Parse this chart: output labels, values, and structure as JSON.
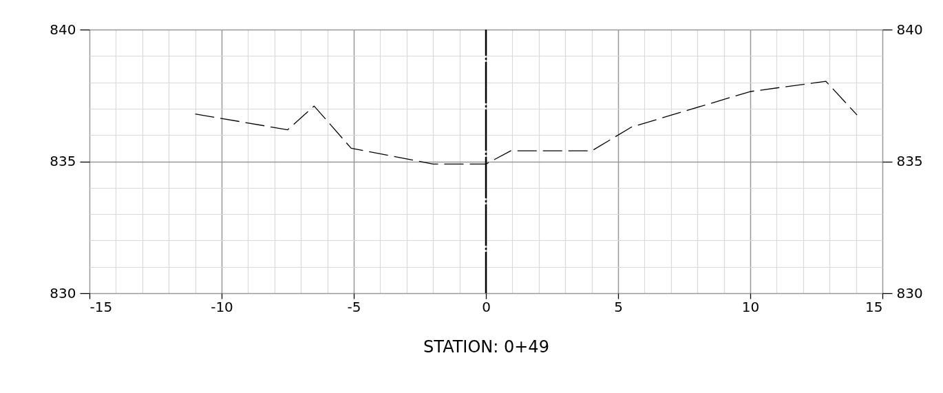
{
  "chart_data": {
    "type": "line",
    "xlabel": "STATION: 0+49",
    "x": [
      -11,
      -7.5,
      -6.5,
      -5.1,
      -2,
      0,
      0.94,
      4,
      5.5,
      10,
      12.86,
      14.04
    ],
    "series": [
      {
        "color": "#000000",
        "values": [
          836.8,
          836.2,
          837.1,
          835.5,
          834.9,
          834.9,
          835.4,
          835.4,
          836.3,
          837.65,
          838.04,
          836.76
        ]
      }
    ],
    "xlim": [
      -15,
      15
    ],
    "xticks": [
      -15,
      {
        "value": -14,
        "label": null
      },
      {
        "value": -13,
        "label": null
      },
      {
        "value": -12,
        "label": null
      },
      {
        "value": -11,
        "label": null
      },
      -10,
      {
        "value": -9,
        "label": null
      },
      {
        "value": -8,
        "label": null
      },
      {
        "value": -7,
        "label": null
      },
      {
        "value": -6,
        "label": null
      },
      -5,
      {
        "value": -4,
        "label": null
      },
      {
        "value": -3,
        "label": null
      },
      {
        "value": -2,
        "label": null
      },
      {
        "value": -1,
        "label": null
      },
      0,
      {
        "value": 1,
        "label": null
      },
      {
        "value": 2,
        "label": null
      },
      {
        "value": 3,
        "label": null
      },
      {
        "value": 4,
        "label": null
      },
      5,
      {
        "value": 6,
        "label": null
      },
      {
        "value": 7,
        "label": null
      },
      {
        "value": 8,
        "label": null
      },
      {
        "value": 9,
        "label": null
      },
      10,
      {
        "value": 11,
        "label": null
      },
      {
        "value": 12,
        "label": null
      },
      {
        "value": 13,
        "label": null
      },
      {
        "value": 14,
        "label": null
      },
      15
    ],
    "ylim": [
      830,
      840
    ],
    "yticks": [
      830,
      {
        "value": 831,
        "label": null
      },
      {
        "value": 832,
        "label": null
      },
      {
        "value": 833,
        "label": null
      },
      {
        "value": 834,
        "label": null
      },
      835,
      {
        "value": 836,
        "label": null
      },
      {
        "value": 837,
        "label": null
      },
      {
        "value": 838,
        "label": null
      },
      {
        "value": 839,
        "label": null
      },
      840
    ],
    "y2lim": [
      830,
      840
    ],
    "y2ticks": [
      830,
      835,
      840
    ],
    "ref_lines": [
      {
        "axis": "x",
        "value": 0,
        "color": "#000000",
        "line_style": "dashed"
      }
    ],
    "grid": true,
    "line_style": "dashed",
    "marker": "none"
  }
}
